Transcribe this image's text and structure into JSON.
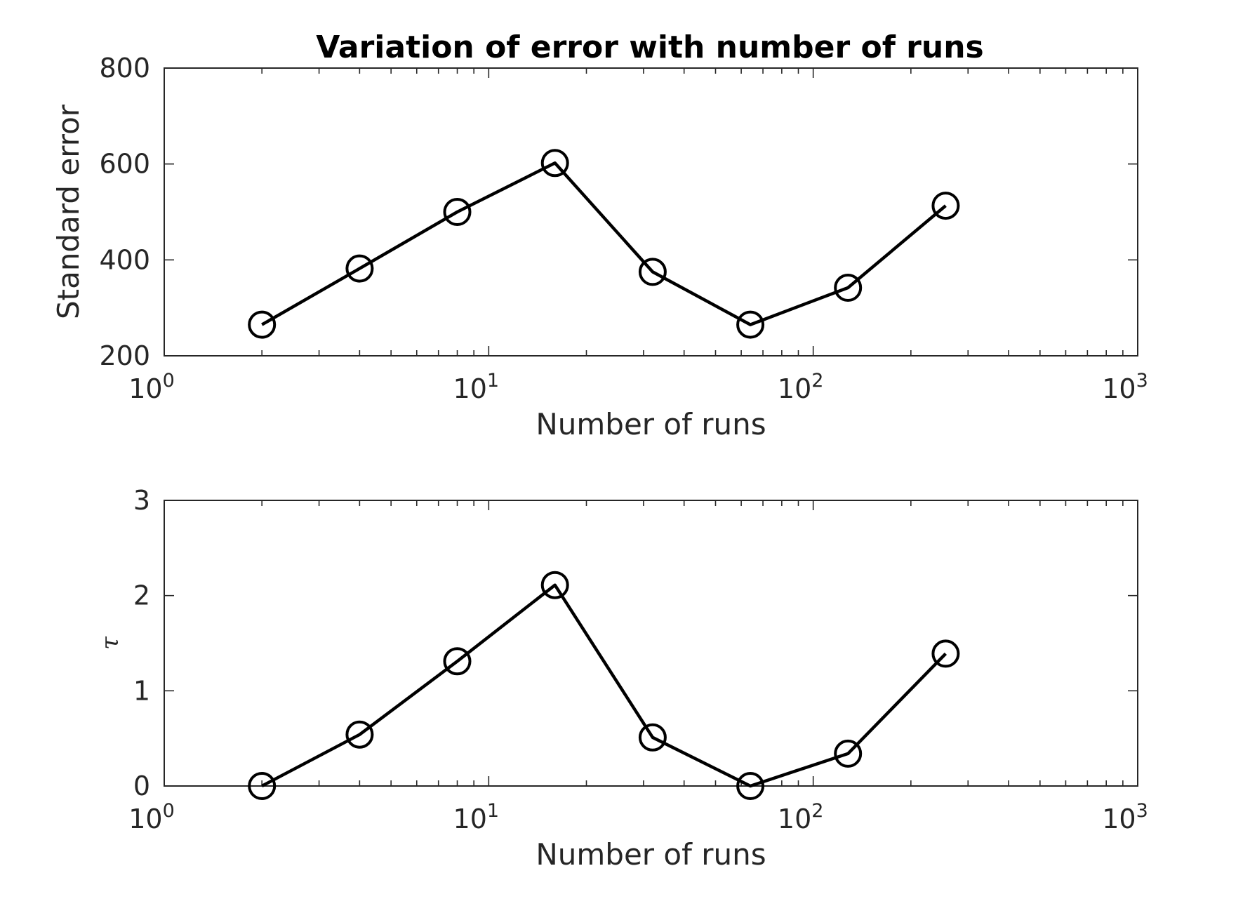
{
  "title": "Variation of error with number of runs",
  "colors": {
    "series": "#000000",
    "axes": "#262626",
    "background": "#ffffff"
  },
  "chart_data": [
    {
      "type": "line",
      "title": "Variation of error with number of runs",
      "xlabel": "Number of runs",
      "ylabel": "Standard error",
      "xscale": "log",
      "xlim": [
        1,
        1000
      ],
      "ylim": [
        200,
        800
      ],
      "xticks": [
        {
          "value": 1,
          "base": "10",
          "exp": "0"
        },
        {
          "value": 10,
          "base": "10",
          "exp": "1"
        },
        {
          "value": 100,
          "base": "10",
          "exp": "2"
        },
        {
          "value": 1000,
          "base": "10",
          "exp": "3"
        }
      ],
      "yticks": [
        "200",
        "400",
        "600",
        "800"
      ],
      "grid": false,
      "marker": "circle",
      "series": [
        {
          "x": [
            2,
            4,
            8,
            16,
            32,
            64,
            128,
            256
          ],
          "values": [
            265,
            382,
            500,
            602,
            375,
            265,
            342,
            513
          ]
        }
      ]
    },
    {
      "type": "line",
      "title": "",
      "xlabel": "Number of runs",
      "ylabel": "τ",
      "xscale": "log",
      "xlim": [
        1,
        1000
      ],
      "ylim": [
        0,
        3
      ],
      "xticks": [
        {
          "value": 1,
          "base": "10",
          "exp": "0"
        },
        {
          "value": 10,
          "base": "10",
          "exp": "1"
        },
        {
          "value": 100,
          "base": "10",
          "exp": "2"
        },
        {
          "value": 1000,
          "base": "10",
          "exp": "3"
        }
      ],
      "yticks": [
        "0",
        "1",
        "2",
        "3"
      ],
      "grid": false,
      "marker": "circle",
      "series": [
        {
          "x": [
            2,
            4,
            8,
            16,
            32,
            64,
            128,
            256
          ],
          "values": [
            0.0,
            0.54,
            1.31,
            2.11,
            0.51,
            0.0,
            0.34,
            1.39
          ]
        }
      ]
    }
  ]
}
